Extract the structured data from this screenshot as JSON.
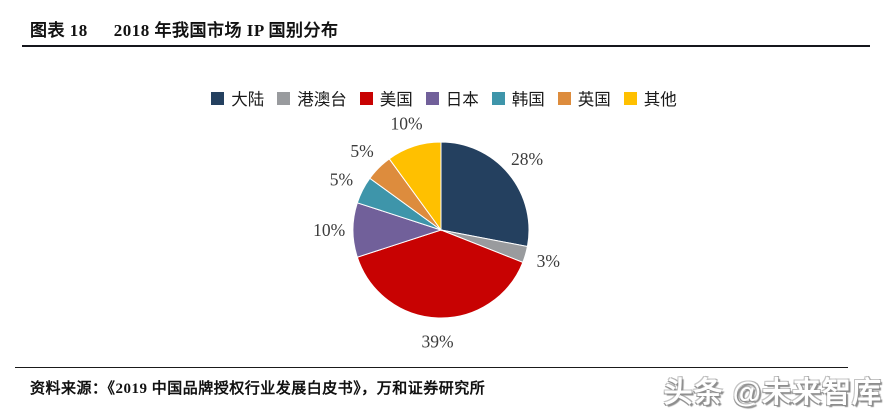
{
  "header": {
    "figure_label": "图表 18",
    "title": "2018 年我国市场 IP 国别分布"
  },
  "chart_data": {
    "type": "pie",
    "title": "2018 年我国市场 IP 国别分布",
    "categories": [
      "大陆",
      "港澳台",
      "美国",
      "日本",
      "韩国",
      "英国",
      "其他"
    ],
    "values": [
      28,
      3,
      39,
      10,
      5,
      5,
      10
    ],
    "labels": [
      "28%",
      "3%",
      "39%",
      "10%",
      "5%",
      "5%",
      "10%"
    ],
    "colors": [
      "#24405F",
      "#999B9E",
      "#C80202",
      "#71609A",
      "#3E95AA",
      "#DD8C3D",
      "#FFC000"
    ],
    "unit": "%",
    "start_angle_deg": 0,
    "direction": "clockwise",
    "legend_position": "top",
    "label_color": "#3C3C3C"
  },
  "footer": {
    "source": "资料来源：《2019 中国品牌授权行业发展白皮书》，万和证券研究所"
  },
  "watermark": {
    "text": "头条 @未来智库"
  }
}
